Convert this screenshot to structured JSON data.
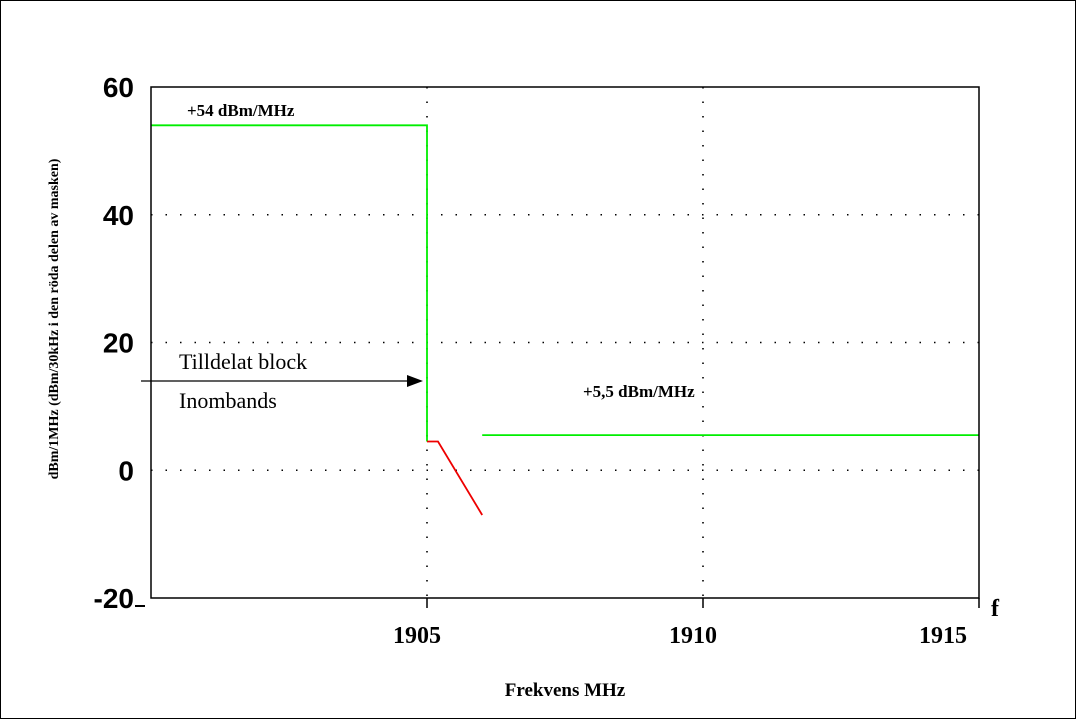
{
  "chart_data": {
    "type": "line",
    "title": "",
    "xlabel": "Frekvens MHz",
    "ylabel": "dBm/1MHz (dBm/30kHz i den röda delen av masken)",
    "x_axis_letter": "f",
    "xlim": [
      1900,
      1915
    ],
    "ylim": [
      -20,
      60
    ],
    "x_ticks": [
      1905,
      1910,
      1915
    ],
    "y_ticks": [
      60,
      40,
      20,
      0,
      -20
    ],
    "grid": true,
    "series": [
      {
        "color": "#00ee00",
        "points": [
          [
            1900,
            54
          ],
          [
            1905,
            54
          ],
          [
            1905,
            4.5
          ]
        ]
      },
      {
        "color": "#00ee00",
        "points": [
          [
            1906,
            5.5
          ],
          [
            1915,
            5.5
          ]
        ]
      },
      {
        "color": "#ee0000",
        "points": [
          [
            1905,
            4.5
          ],
          [
            1905.2,
            4.5
          ],
          [
            1906,
            -7
          ]
        ]
      }
    ],
    "annotations": {
      "top_level": "+54 dBm/MHz",
      "right_level": "+5,5 dBm/MHz",
      "block_line1": "Tilldelat block",
      "block_line2": "Inombands"
    }
  }
}
